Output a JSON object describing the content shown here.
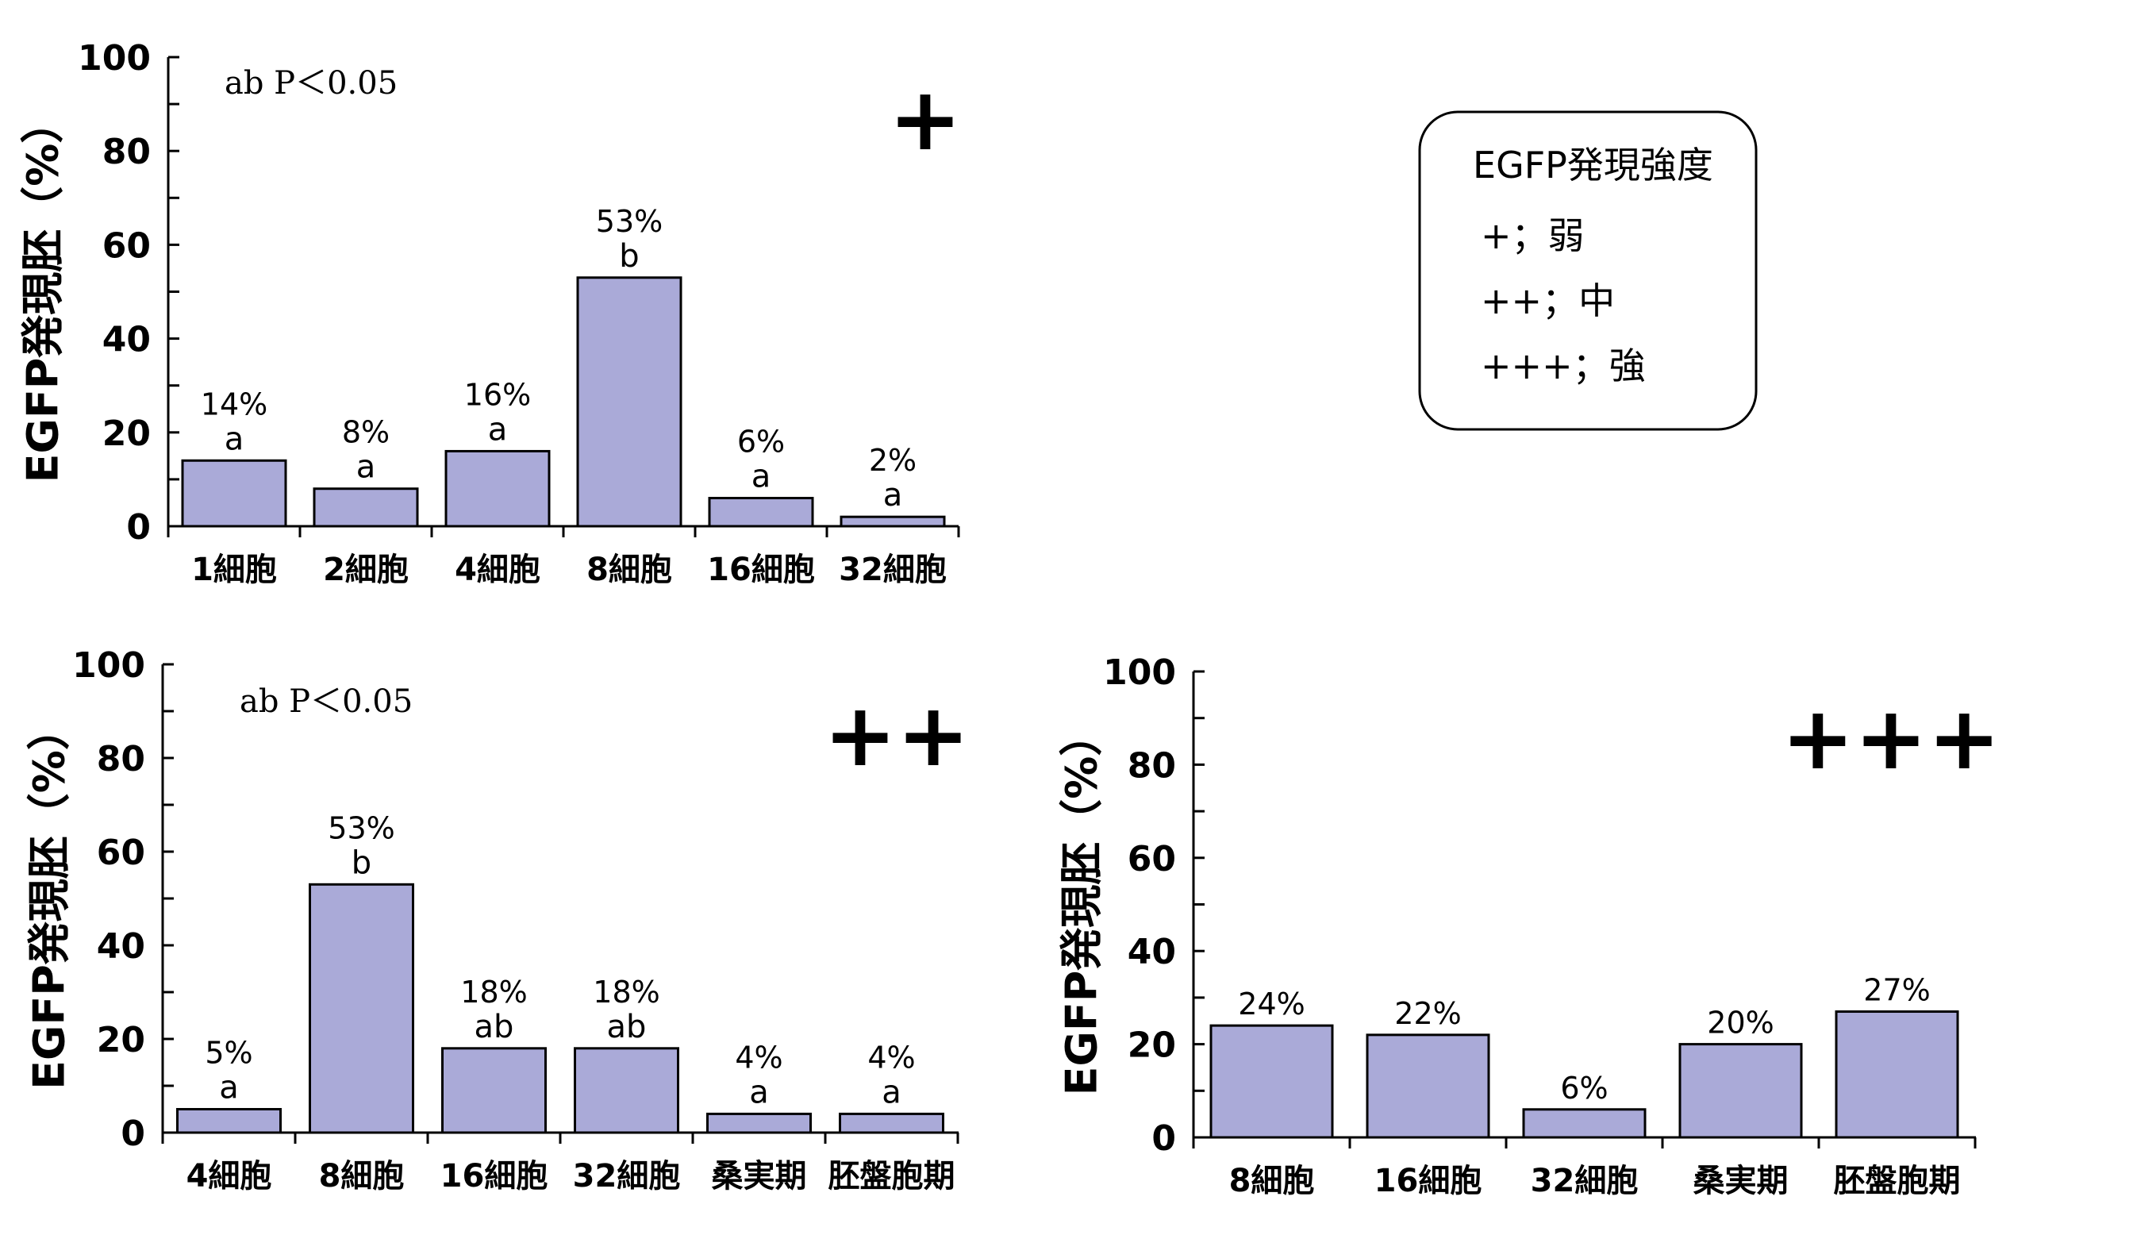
{
  "legend": {
    "title": "EGFP発現強度",
    "items": [
      "+；弱",
      "++；中",
      "+++；強"
    ]
  },
  "chart_data": [
    {
      "type": "bar",
      "panel_mark": "+",
      "note": "ab P＜0.05",
      "ylabel": "EGFP発現胚（%）",
      "ylim": [
        0,
        100
      ],
      "yticks": [
        "0",
        "20",
        "40",
        "60",
        "80",
        "100"
      ],
      "categories": [
        "1細胞",
        "2細胞",
        "4細胞",
        "8細胞",
        "16細胞",
        "32細胞"
      ],
      "values": [
        14,
        8,
        16,
        53,
        6,
        2
      ],
      "data_labels": [
        "14%",
        "8%",
        "16%",
        "53%",
        "6%",
        "2%"
      ],
      "significance": [
        "a",
        "a",
        "a",
        "b",
        "a",
        "a"
      ],
      "bar_color": "#aaaad8"
    },
    {
      "type": "bar",
      "panel_mark": "++",
      "note": "ab P＜0.05",
      "ylabel": "EGFP発現胚（%）",
      "ylim": [
        0,
        100
      ],
      "yticks": [
        "0",
        "20",
        "40",
        "60",
        "80",
        "100"
      ],
      "categories": [
        "4細胞",
        "8細胞",
        "16細胞",
        "32細胞",
        "桑実期",
        "胚盤胞期"
      ],
      "values": [
        5,
        53,
        18,
        18,
        4,
        4
      ],
      "data_labels": [
        "5%",
        "53%",
        "18%",
        "18%",
        "4%",
        "4%"
      ],
      "significance": [
        "a",
        "b",
        "ab",
        "ab",
        "a",
        "a"
      ],
      "bar_color": "#aaaad8"
    },
    {
      "type": "bar",
      "panel_mark": "+++",
      "note": "",
      "ylabel": "EGFP発現胚（%）",
      "ylim": [
        0,
        100
      ],
      "yticks": [
        "0",
        "20",
        "40",
        "60",
        "80",
        "100"
      ],
      "categories": [
        "8細胞",
        "16細胞",
        "32細胞",
        "桑実期",
        "胚盤胞期"
      ],
      "values": [
        24,
        22,
        6,
        20,
        27
      ],
      "data_labels": [
        "24%",
        "22%",
        "6%",
        "20%",
        "27%"
      ],
      "significance": [
        "",
        "",
        "",
        "",
        ""
      ],
      "bar_color": "#aaaad8"
    }
  ]
}
